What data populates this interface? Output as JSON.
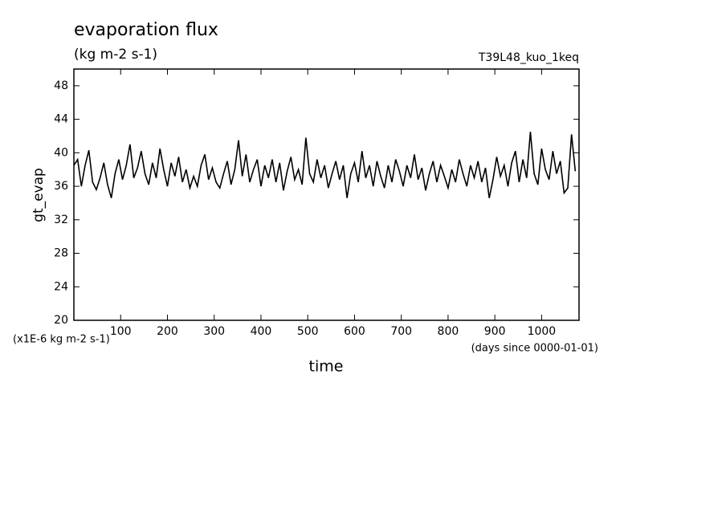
{
  "chart_data": {
    "type": "line",
    "title": "evaporation flux",
    "subtitle": "(kg m-2 s-1)",
    "annotation": "T39L48_kuo_1keq",
    "y_label": "gt_evap",
    "x_label": "time",
    "y_unit": "(x1E-6 kg m-2 s-1)",
    "x_unit": "(days since 0000-01-01)",
    "xlim": [
      0,
      1080
    ],
    "xticks": [
      100,
      200,
      300,
      400,
      500,
      600,
      700,
      800,
      900,
      1000
    ],
    "ylim": [
      20,
      50
    ],
    "yticks": [
      20,
      24,
      28,
      32,
      36,
      40,
      44,
      48
    ],
    "x": [
      0,
      8,
      16,
      24,
      32,
      40,
      48,
      56,
      64,
      72,
      80,
      88,
      96,
      104,
      112,
      120,
      128,
      136,
      144,
      152,
      160,
      168,
      176,
      184,
      192,
      200,
      208,
      216,
      224,
      232,
      240,
      248,
      256,
      264,
      272,
      280,
      288,
      296,
      304,
      312,
      320,
      328,
      336,
      344,
      352,
      360,
      368,
      376,
      384,
      392,
      400,
      408,
      416,
      424,
      432,
      440,
      448,
      456,
      464,
      472,
      480,
      488,
      496,
      504,
      512,
      520,
      528,
      536,
      544,
      552,
      560,
      568,
      576,
      584,
      592,
      600,
      608,
      616,
      624,
      632,
      640,
      648,
      656,
      664,
      672,
      680,
      688,
      696,
      704,
      712,
      720,
      728,
      736,
      744,
      752,
      760,
      768,
      776,
      784,
      792,
      800,
      808,
      816,
      824,
      832,
      840,
      848,
      856,
      864,
      872,
      880,
      888,
      896,
      904,
      912,
      920,
      928,
      936,
      944,
      952,
      960,
      968,
      976,
      984,
      992,
      1000,
      1008,
      1016,
      1024,
      1032,
      1040,
      1048,
      1056,
      1064,
      1072
    ],
    "series": [
      {
        "color": "#000000",
        "values": [
          38.5,
          39.2,
          36.0,
          38.5,
          40.3,
          36.5,
          35.6,
          37.0,
          38.8,
          36.2,
          34.6,
          37.5,
          39.2,
          36.8,
          38.5,
          41.0,
          37.0,
          38.2,
          40.2,
          37.5,
          36.2,
          38.8,
          37.0,
          40.5,
          38.0,
          36.0,
          38.8,
          37.2,
          39.5,
          36.5,
          38.0,
          35.8,
          37.2,
          36.0,
          38.5,
          39.8,
          36.8,
          38.2,
          36.5,
          35.8,
          37.5,
          39.0,
          36.2,
          38.0,
          41.5,
          37.2,
          39.8,
          36.5,
          38.0,
          39.2,
          36.0,
          38.5,
          37.0,
          39.2,
          36.5,
          38.8,
          35.5,
          37.8,
          39.5,
          36.8,
          38.0,
          36.2,
          41.8,
          37.5,
          36.5,
          39.2,
          37.0,
          38.5,
          35.8,
          37.5,
          39.0,
          36.8,
          38.5,
          34.6,
          37.5,
          38.8,
          36.5,
          40.2,
          37.0,
          38.5,
          36.0,
          39.0,
          37.2,
          35.8,
          38.5,
          36.5,
          39.2,
          37.8,
          36.0,
          38.5,
          37.0,
          39.8,
          36.8,
          38.2,
          35.5,
          37.5,
          39.0,
          36.5,
          38.5,
          37.2,
          35.8,
          38.0,
          36.5,
          39.2,
          37.5,
          36.0,
          38.5,
          37.0,
          39.0,
          36.5,
          38.2,
          34.6,
          36.8,
          39.5,
          37.2,
          38.5,
          36.0,
          38.8,
          40.2,
          36.5,
          39.2,
          37.0,
          42.5,
          37.5,
          36.2,
          40.5,
          38.0,
          36.8,
          40.2,
          37.5,
          39.0,
          35.2,
          35.8,
          42.2,
          37.8
        ]
      }
    ]
  }
}
